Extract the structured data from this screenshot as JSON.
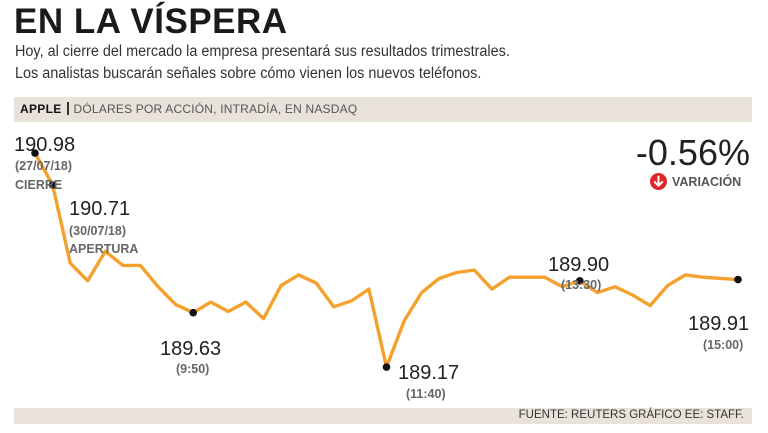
{
  "header": {
    "title": "EN LA VÍSPERA",
    "subtitle_line1": "Hoy, al cierre del mercado la empresa presentará sus resultados trimestrales.",
    "subtitle_line2": "Los analistas buscarán señales sobre cómo vienen los nuevos teléfonos."
  },
  "band": {
    "company": "APPLE",
    "description": "DÓLARES POR ACCIÓN, INTRADÍA, EN NASDAQ"
  },
  "variation": {
    "value": "-0.56%",
    "label": "VARIACIÓN",
    "icon": "down-arrow-icon",
    "color": "#e0262b"
  },
  "annotations": {
    "close_value": "190.98",
    "close_date": "(27/07/18)",
    "close_label": "CIERRE",
    "open_value": "190.71",
    "open_date": "(30/07/18)",
    "open_label": "APERTURA",
    "p950_value": "189.63",
    "p950_time": "(9:50)",
    "p1140_value": "189.17",
    "p1140_time": "(11:40)",
    "p1330_value": "189.90",
    "p1330_time": "(13:30)",
    "p1500_value": "189.91",
    "p1500_time": "(15:00)"
  },
  "footer": {
    "source": "FUENTE: REUTERS GRÁFICO EE: STAFF."
  },
  "colors": {
    "line": "#f4a12e",
    "band": "#e8e2da",
    "marker": "#111111"
  },
  "chart_data": {
    "type": "line",
    "title": "EN LA VÍSPERA",
    "ylabel": "Dólares por acción",
    "xlabel": "",
    "ylim": [
      188.9,
      191.15
    ],
    "series": [
      {
        "name": "Apple",
        "values": [
          190.98,
          190.71,
          190.05,
          189.9,
          190.15,
          190.03,
          190.03,
          189.85,
          189.7,
          189.63,
          189.72,
          189.64,
          189.72,
          189.58,
          189.86,
          189.95,
          189.88,
          189.68,
          189.73,
          189.83,
          189.17,
          189.56,
          189.8,
          189.92,
          189.97,
          189.99,
          189.83,
          189.93,
          189.93,
          189.93,
          189.85,
          189.9,
          189.8,
          189.85,
          189.78,
          189.69,
          189.86,
          189.95,
          189.93,
          189.92,
          189.91
        ]
      }
    ],
    "markers": [
      {
        "index": 0,
        "value": 190.98,
        "label": "CIERRE",
        "time": "(27/07/18)"
      },
      {
        "index": 1,
        "value": 190.71,
        "label": "APERTURA",
        "time": "(30/07/18)"
      },
      {
        "index": 9,
        "value": 189.63,
        "time": "(9:50)"
      },
      {
        "index": 20,
        "value": 189.17,
        "time": "(11:40)"
      },
      {
        "index": 31,
        "value": 189.9,
        "time": "(13:30)"
      },
      {
        "index": 40,
        "value": 189.91,
        "time": "(15:00)"
      }
    ],
    "variation": "-0.56%"
  }
}
